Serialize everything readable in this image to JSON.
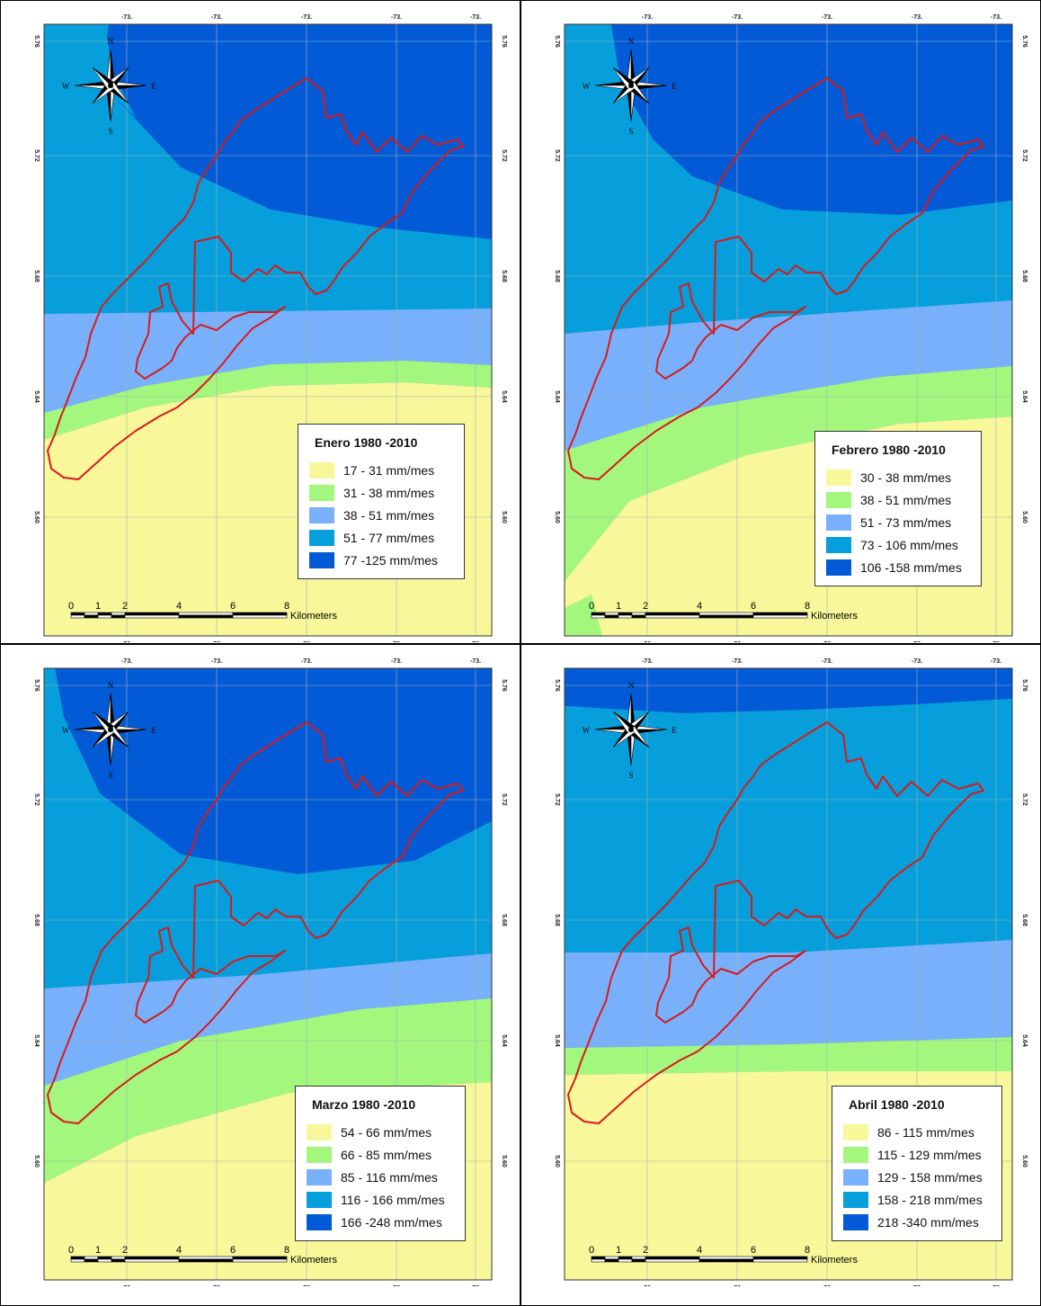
{
  "colors": {
    "class1": "#f8f79a",
    "class2": "#a3f77d",
    "class3": "#79b0fb",
    "class4": "#069fdb",
    "class5": "#035ad6",
    "boundary": "#d71b1b",
    "grid": "#9fb5b0"
  },
  "icons": {
    "north_arrow": "compass-rose-icon"
  },
  "compass": {
    "n": "N",
    "s": "S",
    "e": "E",
    "w": "W"
  },
  "ticks": {
    "lon": [
      "-73.",
      "-73.",
      "-73.",
      "-73.",
      "-73."
    ],
    "lat": [
      "5.76",
      "5.72",
      "5.68",
      "5.64",
      "5.60"
    ]
  },
  "scalebar": {
    "labels": [
      "0",
      "1",
      "2",
      "4",
      "6",
      "8"
    ],
    "unit": "Kilometers"
  },
  "panels": [
    {
      "title": "Enero 1980 -2010",
      "classes": [
        "17 - 31 mm/mes",
        "31 - 38 mm/mes",
        "38 - 51 mm/mes",
        "51 - 77 mm/mes",
        "77 -125 mm/mes"
      ]
    },
    {
      "title": "Febrero 1980 -2010",
      "classes": [
        "30 - 38 mm/mes",
        "38 - 51 mm/mes",
        "51 - 73 mm/mes",
        "73 - 106 mm/mes",
        "106 -158 mm/mes"
      ]
    },
    {
      "title": "Marzo 1980 -2010",
      "classes": [
        "54 - 66 mm/mes",
        "66 - 85 mm/mes",
        "85 - 116 mm/mes",
        "116 - 166 mm/mes",
        "166 -248 mm/mes"
      ]
    },
    {
      "title": "Abril 1980 -2010",
      "classes": [
        "86 - 115 mm/mes",
        "115 - 129 mm/mes",
        "129 - 158 mm/mes",
        "158 - 218 mm/mes",
        "218 -340 mm/mes"
      ]
    }
  ]
}
